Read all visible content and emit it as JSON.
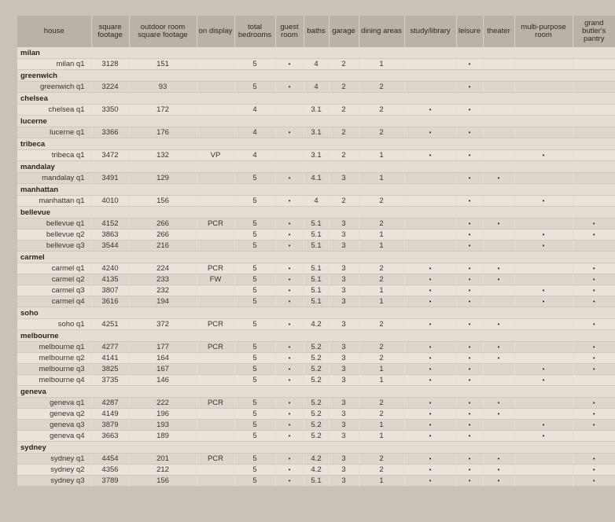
{
  "columns": [
    "house",
    "square footage",
    "outdoor room square footage",
    "on display",
    "total bedrooms",
    "guest room",
    "baths",
    "garage",
    "dining areas",
    "study/library",
    "leisure",
    "theater",
    "multi-purpose room",
    "grand butler's pantry"
  ],
  "bullet": "•",
  "groups": [
    {
      "name": "milan",
      "rows": [
        {
          "house": "milan q1",
          "sqft": "3128",
          "outdoor": "151",
          "display": "",
          "bedrooms": "5",
          "guest": true,
          "baths": "4",
          "garage": "2",
          "dining": "1",
          "study": false,
          "leisure": true,
          "theater": false,
          "multi": false,
          "pantry": false
        }
      ]
    },
    {
      "name": "greenwich",
      "rows": [
        {
          "house": "greenwich q1",
          "sqft": "3224",
          "outdoor": "93",
          "display": "",
          "bedrooms": "5",
          "guest": true,
          "baths": "4",
          "garage": "2",
          "dining": "2",
          "study": false,
          "leisure": true,
          "theater": false,
          "multi": false,
          "pantry": false
        }
      ]
    },
    {
      "name": "chelsea",
      "rows": [
        {
          "house": "chelsea q1",
          "sqft": "3350",
          "outdoor": "172",
          "display": "",
          "bedrooms": "4",
          "guest": false,
          "baths": "3.1",
          "garage": "2",
          "dining": "2",
          "study": true,
          "leisure": true,
          "theater": false,
          "multi": false,
          "pantry": false
        }
      ]
    },
    {
      "name": "lucerne",
      "rows": [
        {
          "house": "lucerne q1",
          "sqft": "3366",
          "outdoor": "176",
          "display": "",
          "bedrooms": "4",
          "guest": true,
          "baths": "3.1",
          "garage": "2",
          "dining": "2",
          "study": true,
          "leisure": true,
          "theater": false,
          "multi": false,
          "pantry": false
        }
      ]
    },
    {
      "name": "tribeca",
      "rows": [
        {
          "house": "tribeca q1",
          "sqft": "3472",
          "outdoor": "132",
          "display": "VP",
          "bedrooms": "4",
          "guest": false,
          "baths": "3.1",
          "garage": "2",
          "dining": "1",
          "study": true,
          "leisure": true,
          "theater": false,
          "multi": true,
          "pantry": false
        }
      ]
    },
    {
      "name": "mandalay",
      "rows": [
        {
          "house": "mandalay q1",
          "sqft": "3491",
          "outdoor": "129",
          "display": "",
          "bedrooms": "5",
          "guest": true,
          "baths": "4.1",
          "garage": "3",
          "dining": "1",
          "study": false,
          "leisure": true,
          "theater": true,
          "multi": false,
          "pantry": false
        }
      ]
    },
    {
      "name": "manhattan",
      "rows": [
        {
          "house": "manhattan q1",
          "sqft": "4010",
          "outdoor": "156",
          "display": "",
          "bedrooms": "5",
          "guest": true,
          "baths": "4",
          "garage": "2",
          "dining": "2",
          "study": false,
          "leisure": true,
          "theater": false,
          "multi": true,
          "pantry": false
        }
      ]
    },
    {
      "name": "bellevue",
      "rows": [
        {
          "house": "bellevue q1",
          "sqft": "4152",
          "outdoor": "266",
          "display": "PCR",
          "bedrooms": "5",
          "guest": true,
          "baths": "5.1",
          "garage": "3",
          "dining": "2",
          "study": false,
          "leisure": true,
          "theater": true,
          "multi": false,
          "pantry": true
        },
        {
          "house": "bellevue q2",
          "sqft": "3863",
          "outdoor": "266",
          "display": "",
          "bedrooms": "5",
          "guest": true,
          "baths": "5.1",
          "garage": "3",
          "dining": "1",
          "study": false,
          "leisure": true,
          "theater": false,
          "multi": true,
          "pantry": true
        },
        {
          "house": "bellevue q3",
          "sqft": "3544",
          "outdoor": "216",
          "display": "",
          "bedrooms": "5",
          "guest": true,
          "baths": "5.1",
          "garage": "3",
          "dining": "1",
          "study": false,
          "leisure": true,
          "theater": false,
          "multi": true,
          "pantry": false
        }
      ]
    },
    {
      "name": "carmel",
      "rows": [
        {
          "house": "carmel q1",
          "sqft": "4240",
          "outdoor": "224",
          "display": "PCR",
          "bedrooms": "5",
          "guest": true,
          "baths": "5.1",
          "garage": "3",
          "dining": "2",
          "study": true,
          "leisure": true,
          "theater": true,
          "multi": false,
          "pantry": true
        },
        {
          "house": "carmel q2",
          "sqft": "4135",
          "outdoor": "233",
          "display": "FW",
          "bedrooms": "5",
          "guest": true,
          "baths": "5.1",
          "garage": "3",
          "dining": "2",
          "study": true,
          "leisure": true,
          "theater": true,
          "multi": false,
          "pantry": true
        },
        {
          "house": "carmel q3",
          "sqft": "3807",
          "outdoor": "232",
          "display": "",
          "bedrooms": "5",
          "guest": true,
          "baths": "5.1",
          "garage": "3",
          "dining": "1",
          "study": true,
          "leisure": true,
          "theater": false,
          "multi": true,
          "pantry": true
        },
        {
          "house": "carmel q4",
          "sqft": "3616",
          "outdoor": "194",
          "display": "",
          "bedrooms": "5",
          "guest": true,
          "baths": "5.1",
          "garage": "3",
          "dining": "1",
          "study": true,
          "leisure": true,
          "theater": false,
          "multi": true,
          "pantry": true
        }
      ]
    },
    {
      "name": "soho",
      "rows": [
        {
          "house": "soho q1",
          "sqft": "4251",
          "outdoor": "372",
          "display": "PCR",
          "bedrooms": "5",
          "guest": true,
          "baths": "4.2",
          "garage": "3",
          "dining": "2",
          "study": true,
          "leisure": true,
          "theater": true,
          "multi": false,
          "pantry": true
        }
      ]
    },
    {
      "name": "melbourne",
      "rows": [
        {
          "house": "melbourne q1",
          "sqft": "4277",
          "outdoor": "177",
          "display": "PCR",
          "bedrooms": "5",
          "guest": true,
          "baths": "5.2",
          "garage": "3",
          "dining": "2",
          "study": true,
          "leisure": true,
          "theater": true,
          "multi": false,
          "pantry": true
        },
        {
          "house": "melbourne q2",
          "sqft": "4141",
          "outdoor": "164",
          "display": "",
          "bedrooms": "5",
          "guest": true,
          "baths": "5.2",
          "garage": "3",
          "dining": "2",
          "study": true,
          "leisure": true,
          "theater": true,
          "multi": false,
          "pantry": true
        },
        {
          "house": "melbourne q3",
          "sqft": "3825",
          "outdoor": "167",
          "display": "",
          "bedrooms": "5",
          "guest": true,
          "baths": "5.2",
          "garage": "3",
          "dining": "1",
          "study": true,
          "leisure": true,
          "theater": false,
          "multi": true,
          "pantry": true
        },
        {
          "house": "melbourne q4",
          "sqft": "3735",
          "outdoor": "146",
          "display": "",
          "bedrooms": "5",
          "guest": true,
          "baths": "5.2",
          "garage": "3",
          "dining": "1",
          "study": true,
          "leisure": true,
          "theater": false,
          "multi": true,
          "pantry": false
        }
      ]
    },
    {
      "name": "geneva",
      "rows": [
        {
          "house": "geneva q1",
          "sqft": "4287",
          "outdoor": "222",
          "display": "PCR",
          "bedrooms": "5",
          "guest": true,
          "baths": "5.2",
          "garage": "3",
          "dining": "2",
          "study": true,
          "leisure": true,
          "theater": true,
          "multi": false,
          "pantry": true
        },
        {
          "house": "geneva q2",
          "sqft": "4149",
          "outdoor": "196",
          "display": "",
          "bedrooms": "5",
          "guest": true,
          "baths": "5.2",
          "garage": "3",
          "dining": "2",
          "study": true,
          "leisure": true,
          "theater": true,
          "multi": false,
          "pantry": true
        },
        {
          "house": "geneva q3",
          "sqft": "3879",
          "outdoor": "193",
          "display": "",
          "bedrooms": "5",
          "guest": true,
          "baths": "5.2",
          "garage": "3",
          "dining": "1",
          "study": true,
          "leisure": true,
          "theater": false,
          "multi": true,
          "pantry": true
        },
        {
          "house": "geneva q4",
          "sqft": "3663",
          "outdoor": "189",
          "display": "",
          "bedrooms": "5",
          "guest": true,
          "baths": "5.2",
          "garage": "3",
          "dining": "1",
          "study": true,
          "leisure": true,
          "theater": false,
          "multi": true,
          "pantry": false
        }
      ]
    },
    {
      "name": "sydney",
      "rows": [
        {
          "house": "sydney q1",
          "sqft": "4454",
          "outdoor": "201",
          "display": "PCR",
          "bedrooms": "5",
          "guest": true,
          "baths": "4.2",
          "garage": "3",
          "dining": "2",
          "study": true,
          "leisure": true,
          "theater": true,
          "multi": false,
          "pantry": true
        },
        {
          "house": "sydney q2",
          "sqft": "4356",
          "outdoor": "212",
          "display": "",
          "bedrooms": "5",
          "guest": true,
          "baths": "4.2",
          "garage": "3",
          "dining": "2",
          "study": true,
          "leisure": true,
          "theater": true,
          "multi": false,
          "pantry": true
        },
        {
          "house": "sydney q3",
          "sqft": "3789",
          "outdoor": "156",
          "display": "",
          "bedrooms": "5",
          "guest": true,
          "baths": "5.1",
          "garage": "3",
          "dining": "1",
          "study": true,
          "leisure": true,
          "theater": true,
          "multi": false,
          "pantry": true
        }
      ]
    }
  ]
}
